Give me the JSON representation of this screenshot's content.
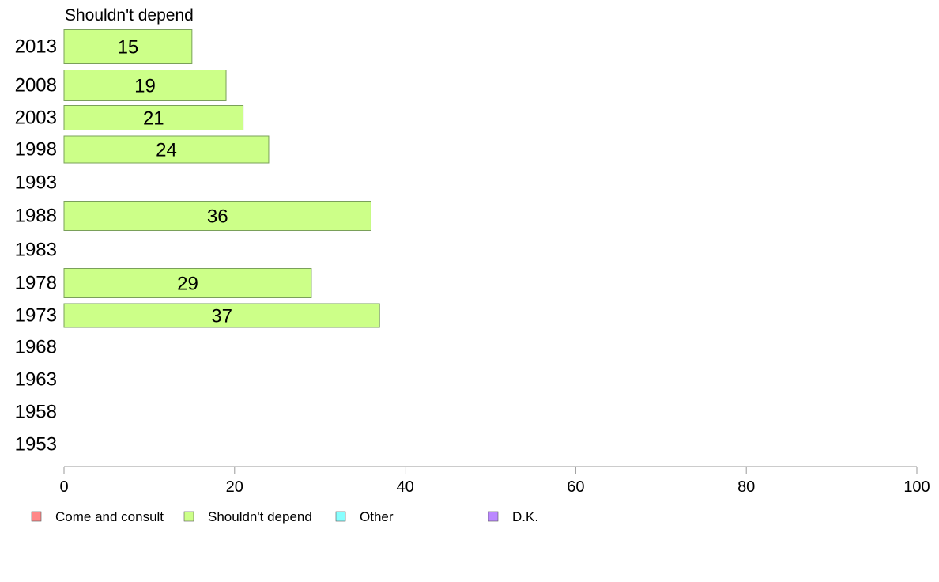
{
  "chart_data": {
    "type": "bar",
    "orientation": "horizontal",
    "title": "Shouldn't depend",
    "categories": [
      "2013",
      "2008",
      "2003",
      "1998",
      "1993",
      "1988",
      "1983",
      "1978",
      "1973",
      "1968",
      "1963",
      "1958",
      "1953"
    ],
    "series": [
      {
        "name": "Shouldn't depend",
        "color": "#ccff88",
        "values": [
          15,
          19,
          21,
          24,
          null,
          36,
          null,
          29,
          37,
          null,
          null,
          null,
          null
        ]
      }
    ],
    "xlim": [
      0,
      100
    ],
    "xticks": [
      0,
      20,
      40,
      60,
      80,
      100
    ],
    "grid": false,
    "legend": {
      "placement": "bottom",
      "items": [
        {
          "label": "Come and consult",
          "color": "#ff8888"
        },
        {
          "label": "Shouldn't depend",
          "color": "#ccff88"
        },
        {
          "label": "Other",
          "color": "#88ffff"
        },
        {
          "label": "D.K.",
          "color": "#bb88ff"
        }
      ]
    }
  }
}
